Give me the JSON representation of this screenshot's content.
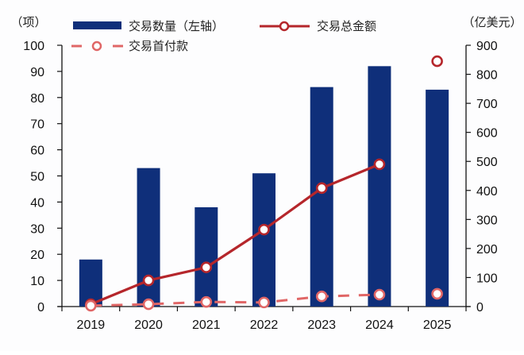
{
  "chart_data": {
    "type": "bar+line",
    "title": "",
    "categories": [
      "2019",
      "2020",
      "2021",
      "2022",
      "2023",
      "2024",
      "2025"
    ],
    "left_axis": {
      "unit_label": "（项）",
      "ylim": [
        0,
        100
      ],
      "ticks": [
        0,
        10,
        20,
        30,
        40,
        50,
        60,
        70,
        80,
        90,
        100
      ]
    },
    "right_axis": {
      "unit_label": "（亿美元）",
      "ylim": [
        0,
        900
      ],
      "ticks": [
        0,
        100,
        200,
        300,
        400,
        500,
        600,
        700,
        800,
        900
      ]
    },
    "grid": false,
    "legend_position": "top",
    "series": [
      {
        "name": "交易数量（左轴）",
        "type": "bar",
        "axis": "left",
        "color": "#0f2f7a",
        "values": [
          18,
          53,
          38,
          51,
          84,
          92,
          83
        ]
      },
      {
        "name": "交易总金额",
        "type": "line",
        "axis": "right",
        "color": "#b5262b",
        "style": "solid",
        "marker": "hollow-circle",
        "values": [
          8,
          90,
          135,
          265,
          408,
          490,
          845
        ],
        "connected_until_index": 5
      },
      {
        "name": "交易首付款",
        "type": "line",
        "axis": "right",
        "color": "#e06666",
        "style": "dashed",
        "marker": "hollow-circle",
        "values": [
          3,
          8,
          16,
          14,
          35,
          41,
          44
        ],
        "connected_until_index": 5
      }
    ]
  }
}
